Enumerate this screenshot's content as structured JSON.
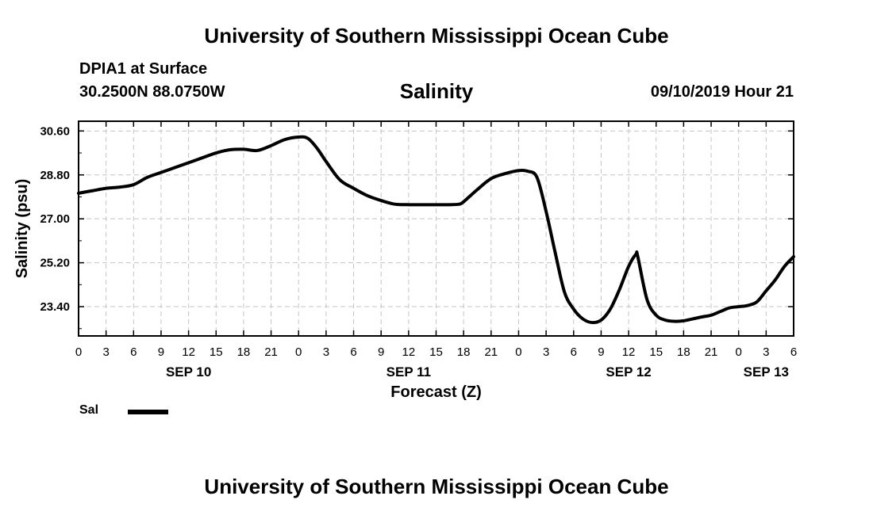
{
  "header": {
    "title": "University of Southern Mississippi Ocean Cube",
    "station": "DPIA1 at Surface",
    "coords": "30.2500N 88.0750W",
    "timestamp": "09/10/2019 Hour 21"
  },
  "footer": {
    "title": "University of Southern Mississippi Ocean Cube"
  },
  "chart_data": {
    "type": "line",
    "title": "Salinity",
    "xlabel": "Forecast (Z)",
    "ylabel": "Salinity (psu)",
    "xlim": [
      0,
      78
    ],
    "ylim": [
      22.2,
      31.0
    ],
    "grid": true,
    "x_ticks": [
      {
        "h": 0,
        "label": "0"
      },
      {
        "h": 3,
        "label": "3"
      },
      {
        "h": 6,
        "label": "6"
      },
      {
        "h": 9,
        "label": "9"
      },
      {
        "h": 12,
        "label": "12"
      },
      {
        "h": 15,
        "label": "15"
      },
      {
        "h": 18,
        "label": "18"
      },
      {
        "h": 21,
        "label": "21"
      },
      {
        "h": 24,
        "label": "0"
      },
      {
        "h": 27,
        "label": "3"
      },
      {
        "h": 30,
        "label": "6"
      },
      {
        "h": 33,
        "label": "9"
      },
      {
        "h": 36,
        "label": "12"
      },
      {
        "h": 39,
        "label": "15"
      },
      {
        "h": 42,
        "label": "18"
      },
      {
        "h": 45,
        "label": "21"
      },
      {
        "h": 48,
        "label": "0"
      },
      {
        "h": 51,
        "label": "3"
      },
      {
        "h": 54,
        "label": "6"
      },
      {
        "h": 57,
        "label": "9"
      },
      {
        "h": 60,
        "label": "12"
      },
      {
        "h": 63,
        "label": "15"
      },
      {
        "h": 66,
        "label": "18"
      },
      {
        "h": 69,
        "label": "21"
      },
      {
        "h": 72,
        "label": "0"
      },
      {
        "h": 75,
        "label": "3"
      },
      {
        "h": 78,
        "label": "6"
      }
    ],
    "date_labels": [
      {
        "h": 12,
        "label": "SEP 10"
      },
      {
        "h": 36,
        "label": "SEP 11"
      },
      {
        "h": 60,
        "label": "SEP 12"
      },
      {
        "h": 75,
        "label": "SEP 13"
      }
    ],
    "y_ticks": [
      {
        "v": 30.6,
        "label": "30.60"
      },
      {
        "v": 28.8,
        "label": "28.80"
      },
      {
        "v": 27.0,
        "label": "27.00"
      },
      {
        "v": 25.2,
        "label": "25.20"
      },
      {
        "v": 23.4,
        "label": "23.40"
      }
    ],
    "legend": [
      {
        "name": "Sal",
        "color": "#000000"
      }
    ],
    "legend_position": "bottom-left",
    "series": [
      {
        "name": "Sal",
        "color": "#000000",
        "x": [
          0,
          1.5,
          3,
          4.5,
          6,
          7.5,
          9,
          10.5,
          12,
          13.5,
          15,
          16.5,
          18,
          19.5,
          21,
          22.5,
          24,
          25,
          26,
          27,
          28.5,
          30,
          31.5,
          33,
          34.5,
          36,
          37.5,
          39,
          40.5,
          41.5,
          42,
          43.5,
          45,
          46.5,
          48,
          49,
          50,
          51,
          52,
          53,
          54,
          55,
          56,
          57,
          58,
          59,
          60,
          60.8,
          61,
          62,
          63,
          64,
          65,
          66,
          67,
          68,
          69,
          70,
          71,
          72,
          73,
          74,
          75,
          76,
          77,
          78
        ],
        "y": [
          28.05,
          28.15,
          28.25,
          28.3,
          28.4,
          28.7,
          28.9,
          29.1,
          29.3,
          29.5,
          29.7,
          29.83,
          29.85,
          29.8,
          30.0,
          30.25,
          30.35,
          30.3,
          29.9,
          29.35,
          28.6,
          28.25,
          27.95,
          27.75,
          27.6,
          27.58,
          27.58,
          27.58,
          27.58,
          27.6,
          27.7,
          28.2,
          28.65,
          28.85,
          28.98,
          28.95,
          28.7,
          27.3,
          25.6,
          24.0,
          23.3,
          22.9,
          22.75,
          22.85,
          23.3,
          24.1,
          25.05,
          25.55,
          25.45,
          23.7,
          23.05,
          22.85,
          22.8,
          22.82,
          22.9,
          22.98,
          23.05,
          23.2,
          23.35,
          23.4,
          23.45,
          23.6,
          24.05,
          24.5,
          25.05,
          25.45
        ]
      }
    ]
  }
}
